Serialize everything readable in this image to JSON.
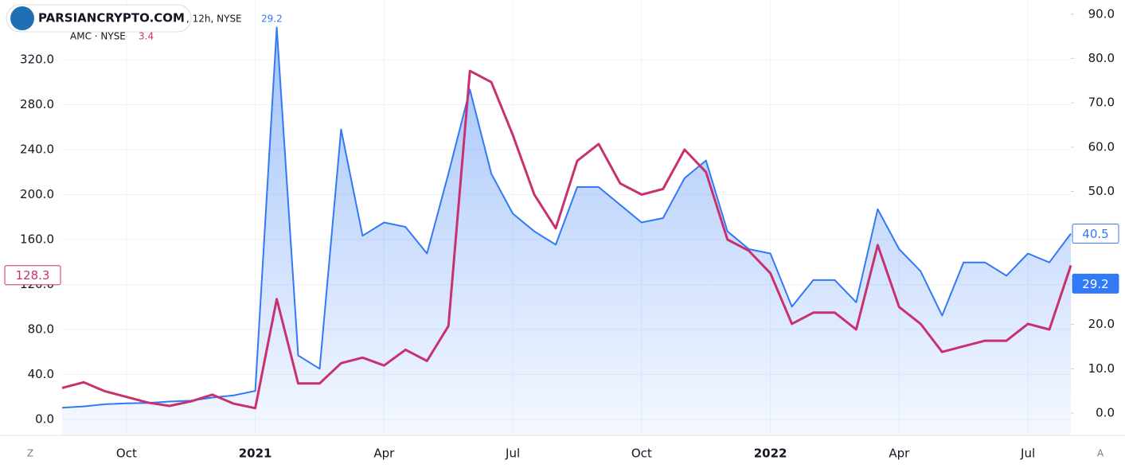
{
  "chart_data": {
    "type": "line",
    "watermark": "PARSIANCRYPTO.COM",
    "legend_fragment": ", 12h, NYSE",
    "corner_labels": [
      "Z",
      "A"
    ],
    "categories": [
      null,
      null,
      null,
      "Oct",
      null,
      null,
      null,
      null,
      null,
      "2021",
      null,
      null,
      null,
      null,
      null,
      "Apr",
      null,
      null,
      null,
      null,
      null,
      "Jul",
      null,
      null,
      null,
      null,
      null,
      "Oct",
      null,
      null,
      null,
      null,
      null,
      "2022",
      null,
      null,
      null,
      null,
      null,
      "Apr",
      null,
      null,
      null,
      null,
      null,
      "Jul",
      null,
      null
    ],
    "series": [
      {
        "name": "",
        "legend_value": 29.2,
        "color": "#3179f5",
        "axis": "y2",
        "area": true,
        "values": [
          1.2,
          1.5,
          2,
          2.2,
          2.3,
          2.6,
          2.8,
          3.5,
          4,
          5,
          87,
          13,
          10,
          64,
          40,
          43,
          42,
          36,
          54,
          73,
          54,
          45,
          41,
          38,
          51,
          51,
          47,
          43,
          44,
          53,
          57,
          41,
          37,
          36,
          24,
          30,
          30,
          25,
          46,
          37,
          32,
          22,
          34,
          34,
          31,
          36,
          34,
          40.5
        ]
      },
      {
        "name": "AMC · NYSE",
        "legend_value": 3.4,
        "color": "#c8316f",
        "axis": "y",
        "values": [
          28,
          33,
          25,
          20,
          15,
          12,
          16,
          22,
          14,
          10,
          107,
          32,
          32,
          50,
          55,
          48,
          62,
          52,
          83,
          310,
          300,
          253,
          200,
          170,
          230,
          245,
          210,
          200,
          205,
          240,
          220,
          160,
          150,
          130,
          85,
          95,
          95,
          80,
          155,
          100,
          85,
          60,
          65,
          70,
          70,
          85,
          80,
          137
        ]
      }
    ],
    "ylim": [
      -14.2,
      373.1
    ],
    "yticks": [
      {
        "value": 0,
        "label": "0.0"
      },
      {
        "value": 40,
        "label": "40.0"
      },
      {
        "value": 80,
        "label": "80.0"
      },
      {
        "value": 120,
        "label": "120.0"
      },
      {
        "value": 160,
        "label": "160.0"
      },
      {
        "value": 200,
        "label": "200.0"
      },
      {
        "value": 240,
        "label": "240.0"
      },
      {
        "value": 280,
        "label": "280.0"
      },
      {
        "value": 320,
        "label": "320.0"
      }
    ],
    "y2lim": [
      -5.03,
      93.2
    ],
    "y2ticks": [
      {
        "value": 0,
        "label": "0.0"
      },
      {
        "value": 10,
        "label": "10.0"
      },
      {
        "value": 20,
        "label": "20.0"
      },
      {
        "value": 30,
        "label": "30.0"
      },
      {
        "value": 40,
        "label": "40.0"
      },
      {
        "value": 50,
        "label": "50.0"
      },
      {
        "value": 60,
        "label": "60.0"
      },
      {
        "value": 70,
        "label": "70.0"
      },
      {
        "value": 80,
        "label": "80.0"
      },
      {
        "value": 90,
        "label": "90.0"
      }
    ],
    "price_labels": [
      {
        "value": 128.3,
        "axis": "y",
        "color": "#c8316f",
        "filled": false
      },
      {
        "value": 40.5,
        "axis": "y2",
        "color": "#3179f5",
        "filled": false
      },
      {
        "value": 29.2,
        "axis": "y2",
        "color": "#3179f5",
        "filled": true
      }
    ],
    "grid": true
  }
}
